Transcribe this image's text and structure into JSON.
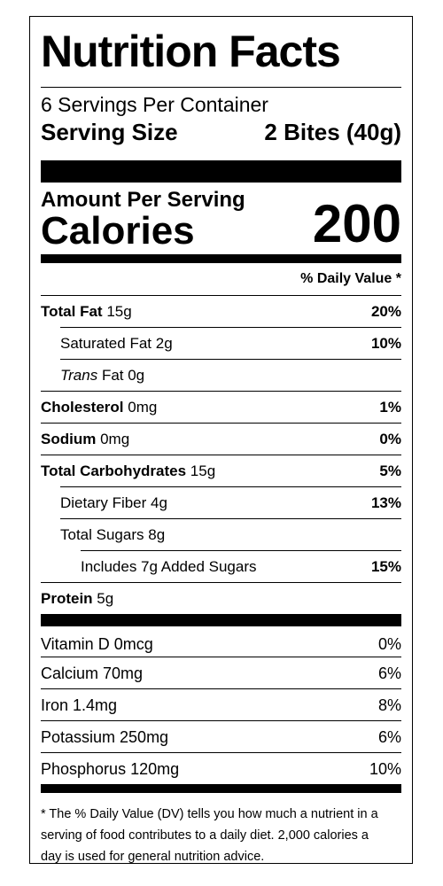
{
  "label": {
    "title": "Nutrition Facts",
    "servings_per_container": "6 Servings Per Container",
    "serving_size_label": "Serving Size",
    "serving_size_value": "2 Bites (40g)",
    "amount_per_serving": "Amount Per Serving",
    "calories_label": "Calories",
    "calories_value": "200",
    "daily_value_header": "% Daily Value *",
    "nutrients": [
      {
        "name": "Total Fat",
        "amount": "15g",
        "dv": "20%"
      },
      {
        "name": "Saturated Fat",
        "amount": "2g",
        "dv": "10%"
      },
      {
        "name": "Trans",
        "amount": "Fat 0g",
        "dv": ""
      },
      {
        "name": "Cholesterol",
        "amount": "0mg",
        "dv": "1%"
      },
      {
        "name": "Sodium",
        "amount": "0mg",
        "dv": "0%"
      },
      {
        "name": "Total Carbohydrates",
        "amount": "15g",
        "dv": "5%"
      },
      {
        "name": "Dietary Fiber",
        "amount": "4g",
        "dv": "13%"
      },
      {
        "name": "Total Sugars",
        "amount": "8g",
        "dv": ""
      },
      {
        "name": "Includes 7g Added Sugars",
        "amount": "",
        "dv": "15%"
      },
      {
        "name": "Protein",
        "amount": "5g",
        "dv": ""
      }
    ],
    "vitamins": [
      {
        "name": "Vitamin D 0mcg",
        "dv": "0%"
      },
      {
        "name": "Calcium 70mg",
        "dv": "6%"
      },
      {
        "name": "Iron 1.4mg",
        "dv": "8%"
      },
      {
        "name": "Potassium 250mg",
        "dv": "6%"
      },
      {
        "name": "Phosphorus 120mg",
        "dv": "10%"
      }
    ],
    "footnote_lines": [
      "* The % Daily Value (DV) tells you how much a nutrient in a",
      "serving of food contributes to a daily diet. 2,000 calories a",
      "day is used for general nutrition advice."
    ]
  }
}
